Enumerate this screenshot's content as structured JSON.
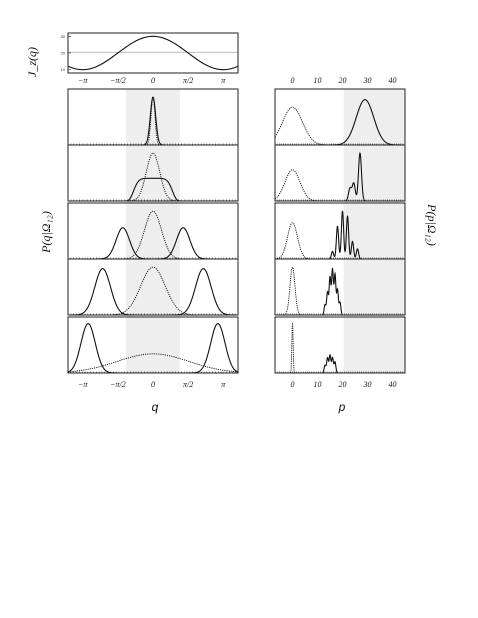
{
  "chart_data": [
    {
      "type": "line",
      "panel": "top",
      "ylabel": "J_z(q)",
      "y_ticks": [
        "30",
        "20",
        "10"
      ],
      "ylim": [
        8,
        32
      ],
      "reference_line": 20.5,
      "curve": "cosine",
      "x_range": [
        -3.8,
        3.8
      ]
    },
    {
      "type": "line",
      "panel": "left-stack",
      "xlabel": "q",
      "ylabel": "P(q|Ω₁₂)",
      "x_tick_labels": [
        "−π",
        "−π/2",
        "0",
        "π/2",
        "π"
      ],
      "x_tick_values": [
        -3.1416,
        -1.5708,
        0,
        1.5708,
        3.1416
      ],
      "shaded_region": [
        -1.2,
        1.2
      ],
      "xlim": [
        -3.8,
        3.8
      ],
      "rows": [
        {
          "dashed": {
            "kind": "gauss",
            "mu": 0,
            "sigma": 0.09
          },
          "solid": {
            "kind": "gauss",
            "mu": 0,
            "sigma": 0.12
          }
        },
        {
          "dashed": {
            "kind": "gauss",
            "mu": 0,
            "sigma": 0.3
          },
          "solid": {
            "kind": "plateau",
            "mu": 0,
            "halfwidth": 0.9,
            "height": 0.45
          }
        },
        {
          "dashed": {
            "kind": "gauss",
            "mu": 0,
            "sigma": 0.38
          },
          "solid": {
            "kind": "pair",
            "mu": 1.35,
            "sigma": 0.3,
            "height": 0.62
          }
        },
        {
          "dashed": {
            "kind": "gauss",
            "mu": 0,
            "sigma": 0.55
          },
          "solid": {
            "kind": "pair",
            "mu": 2.25,
            "sigma": 0.35,
            "height": 0.92
          }
        },
        {
          "dashed": {
            "kind": "gauss",
            "mu": 0,
            "sigma": 1.6,
            "height": 0.38
          },
          "solid": {
            "kind": "pair",
            "mu": 2.9,
            "sigma": 0.32,
            "height": 0.98
          }
        }
      ]
    },
    {
      "type": "line",
      "panel": "right-stack",
      "xlabel": "p",
      "ylabel": "P(p|Ω₁₂)",
      "x_tick_labels": [
        "0",
        "10",
        "20",
        "30",
        "40"
      ],
      "x_tick_values": [
        0,
        10,
        20,
        30,
        40
      ],
      "shaded_region": [
        20.5,
        45
      ],
      "xlim": [
        -7,
        45
      ],
      "rows": [
        {
          "dashed": {
            "kind": "gauss",
            "mu": 0,
            "sigma": 4,
            "height": 0.75
          },
          "solid": {
            "kind": "gauss",
            "mu": 29,
            "sigma": 3.5,
            "height": 0.9
          }
        },
        {
          "dashed": {
            "kind": "gauss",
            "mu": 0,
            "sigma": 3,
            "height": 0.62
          },
          "solid": {
            "kind": "spikes",
            "peaks": [
              [
                23,
                0.25
              ],
              [
                24.5,
                0.35
              ],
              [
                27,
                0.95
              ]
            ],
            "width": 0.6
          }
        },
        {
          "dashed": {
            "kind": "gauss",
            "mu": 0,
            "sigma": 2,
            "height": 0.72
          },
          "solid": {
            "kind": "spikes",
            "peaks": [
              [
                16,
                0.15
              ],
              [
                18,
                0.65
              ],
              [
                20,
                0.95
              ],
              [
                22,
                0.85
              ],
              [
                24,
                0.35
              ],
              [
                26,
                0.2
              ]
            ],
            "width": 0.45
          }
        },
        {
          "dashed": {
            "kind": "gauss",
            "mu": 0,
            "sigma": 1,
            "height": 0.95
          },
          "solid": {
            "kind": "spikes",
            "peaks": [
              [
                13,
                0.2
              ],
              [
                14,
                0.45
              ],
              [
                15,
                0.75
              ],
              [
                16,
                0.9
              ],
              [
                17,
                0.8
              ],
              [
                18,
                0.5
              ],
              [
                19,
                0.25
              ]
            ],
            "width": 0.35
          }
        },
        {
          "dashed": {
            "kind": "gauss",
            "mu": 0,
            "sigma": 0.25,
            "height": 1.0
          },
          "solid": {
            "kind": "spikes",
            "peaks": [
              [
                13,
                0.15
              ],
              [
                14,
                0.3
              ],
              [
                15,
                0.35
              ],
              [
                16,
                0.3
              ],
              [
                17,
                0.22
              ]
            ],
            "width": 0.35
          }
        }
      ]
    }
  ]
}
